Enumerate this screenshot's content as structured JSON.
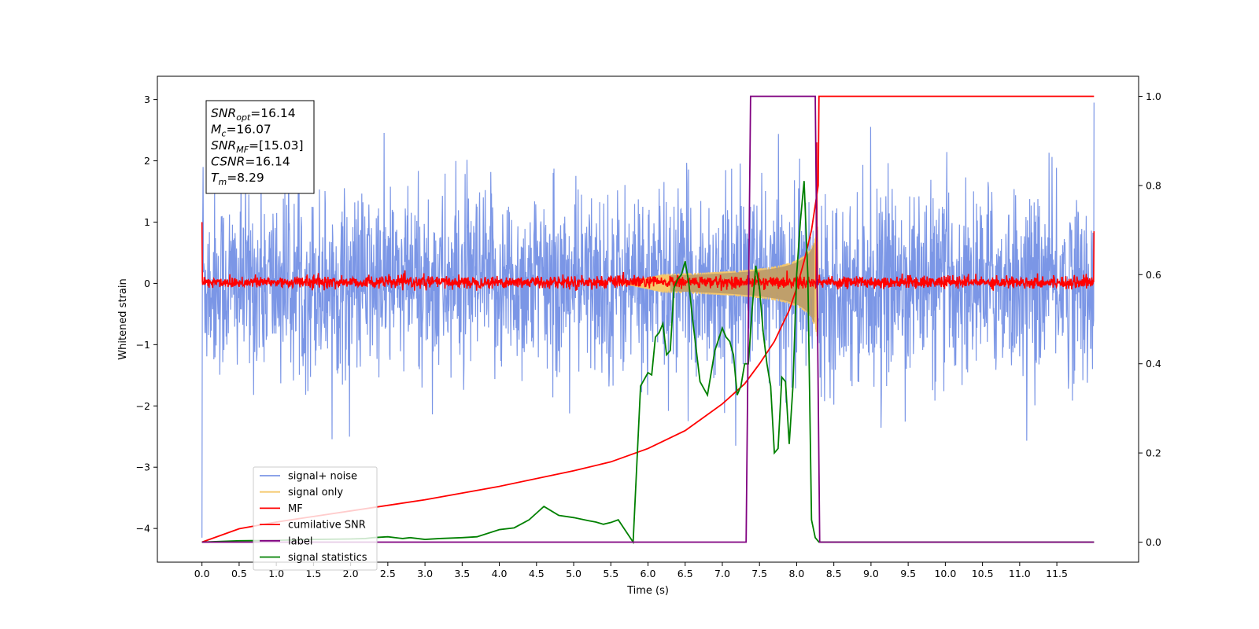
{
  "chart_data": {
    "type": "line",
    "title": "",
    "xlabel": "Time (s)",
    "ylabel": "Whitened strain",
    "xlim": [
      -0.6,
      12.6
    ],
    "ylim": [
      -4.55,
      3.38
    ],
    "y2lim": [
      -0.045,
      1.045
    ],
    "xticks": [
      "0.0",
      "0.5",
      "1.0",
      "1.5",
      "2.0",
      "2.5",
      "3.0",
      "3.5",
      "4.0",
      "4.5",
      "5.0",
      "5.5",
      "6.0",
      "6.5",
      "7.0",
      "7.5",
      "8.0",
      "8.5",
      "9.0",
      "9.5",
      "10.0",
      "10.5",
      "11.0",
      "11.5"
    ],
    "yticks": [
      "3",
      "2",
      "1",
      "0",
      "−1",
      "−2",
      "−3",
      "−4"
    ],
    "y2ticks": [
      "1.0",
      "0.8",
      "0.6",
      "0.4",
      "0.2",
      "0.0"
    ],
    "grid": false,
    "legend_position": "lower-left",
    "annotation": {
      "lines": [
        {
          "sym": "SNR",
          "sub": "opt",
          "val": "=16.14"
        },
        {
          "sym": "M",
          "sub": "c",
          "val": "=16.07"
        },
        {
          "sym": "SNR",
          "sub": "MF",
          "val": "=[15.03]"
        },
        {
          "sym": "CSNR",
          "sub": "",
          "val": "=16.14"
        },
        {
          "sym": "T",
          "sub": "m",
          "val": "=8.29"
        }
      ]
    },
    "series": [
      {
        "name": "signal+ noise",
        "axis": "left",
        "color": "#7b96e6",
        "style": "noise",
        "x_range": [
          0,
          12
        ],
        "amplitude_1sigma": 0.75,
        "approx_range": [
          -2.6,
          2.6
        ]
      },
      {
        "name": "signal only",
        "axis": "left",
        "color": "#f5c76b",
        "style": "chirp",
        "x_range": [
          5.6,
          8.29
        ],
        "peak_amplitude": 1.0
      },
      {
        "name": "MF",
        "axis": "left",
        "color": "#ff0000",
        "style": "noise",
        "x_range": [
          0,
          12
        ],
        "amplitude_1sigma": 0.05,
        "x": [
          0.0,
          0.02,
          8.24,
          8.27,
          8.31,
          11.97,
          12.0
        ],
        "y": [
          1.0,
          0.05,
          0.05,
          2.3,
          0.05,
          0.05,
          0.85
        ]
      },
      {
        "name": "cumilative SNR",
        "axis": "right",
        "color": "#ff0000",
        "x": [
          0.0,
          0.5,
          1.0,
          2.0,
          3.0,
          4.0,
          5.0,
          5.5,
          6.0,
          6.5,
          7.0,
          7.3,
          7.5,
          7.7,
          7.9,
          8.0,
          8.1,
          8.2,
          8.29,
          8.3,
          12.0
        ],
        "y": [
          0.0,
          0.03,
          0.045,
          0.07,
          0.095,
          0.125,
          0.16,
          0.18,
          0.21,
          0.25,
          0.31,
          0.355,
          0.4,
          0.45,
          0.52,
          0.57,
          0.63,
          0.7,
          0.8,
          1.0,
          1.0
        ]
      },
      {
        "name": "label",
        "axis": "right",
        "color": "#800080",
        "x": [
          0.0,
          7.32,
          7.38,
          8.25,
          8.31,
          12.0
        ],
        "y": [
          0.0,
          0.0,
          1.0,
          1.0,
          0.0,
          0.0
        ]
      },
      {
        "name": "signal statistics",
        "axis": "right",
        "color": "#008000",
        "x": [
          0.0,
          0.5,
          1.0,
          1.5,
          2.0,
          2.2,
          2.3,
          2.5,
          2.7,
          2.8,
          3.0,
          3.2,
          3.5,
          3.7,
          4.0,
          4.2,
          4.4,
          4.5,
          4.6,
          4.7,
          4.8,
          5.0,
          5.2,
          5.3,
          5.4,
          5.5,
          5.6,
          5.8,
          5.9,
          6.0,
          6.05,
          6.1,
          6.15,
          6.2,
          6.25,
          6.3,
          6.35,
          6.4,
          6.45,
          6.5,
          6.55,
          6.6,
          6.7,
          6.8,
          6.9,
          7.0,
          7.05,
          7.1,
          7.15,
          7.2,
          7.25,
          7.3,
          7.35,
          7.4,
          7.45,
          7.5,
          7.55,
          7.6,
          7.65,
          7.7,
          7.75,
          7.8,
          7.85,
          7.9,
          7.95,
          8.0,
          8.05,
          8.1,
          8.15,
          8.2,
          8.25,
          8.3,
          8.35,
          8.4,
          9.0,
          10.0,
          11.0,
          12.0
        ],
        "y": [
          0.0,
          0.003,
          0.004,
          0.006,
          0.007,
          0.008,
          0.01,
          0.012,
          0.008,
          0.01,
          0.006,
          0.008,
          0.01,
          0.012,
          0.028,
          0.032,
          0.05,
          0.065,
          0.08,
          0.07,
          0.06,
          0.055,
          0.048,
          0.045,
          0.04,
          0.044,
          0.05,
          0.0,
          0.35,
          0.38,
          0.375,
          0.46,
          0.47,
          0.49,
          0.42,
          0.43,
          0.57,
          0.59,
          0.6,
          0.63,
          0.58,
          0.5,
          0.36,
          0.33,
          0.43,
          0.48,
          0.46,
          0.45,
          0.42,
          0.33,
          0.35,
          0.4,
          0.4,
          0.52,
          0.62,
          0.57,
          0.47,
          0.4,
          0.35,
          0.2,
          0.21,
          0.37,
          0.36,
          0.22,
          0.35,
          0.6,
          0.72,
          0.81,
          0.6,
          0.05,
          0.01,
          0.0,
          0.0,
          0.0,
          0.0,
          0.0,
          0.0,
          0.0
        ]
      }
    ]
  }
}
